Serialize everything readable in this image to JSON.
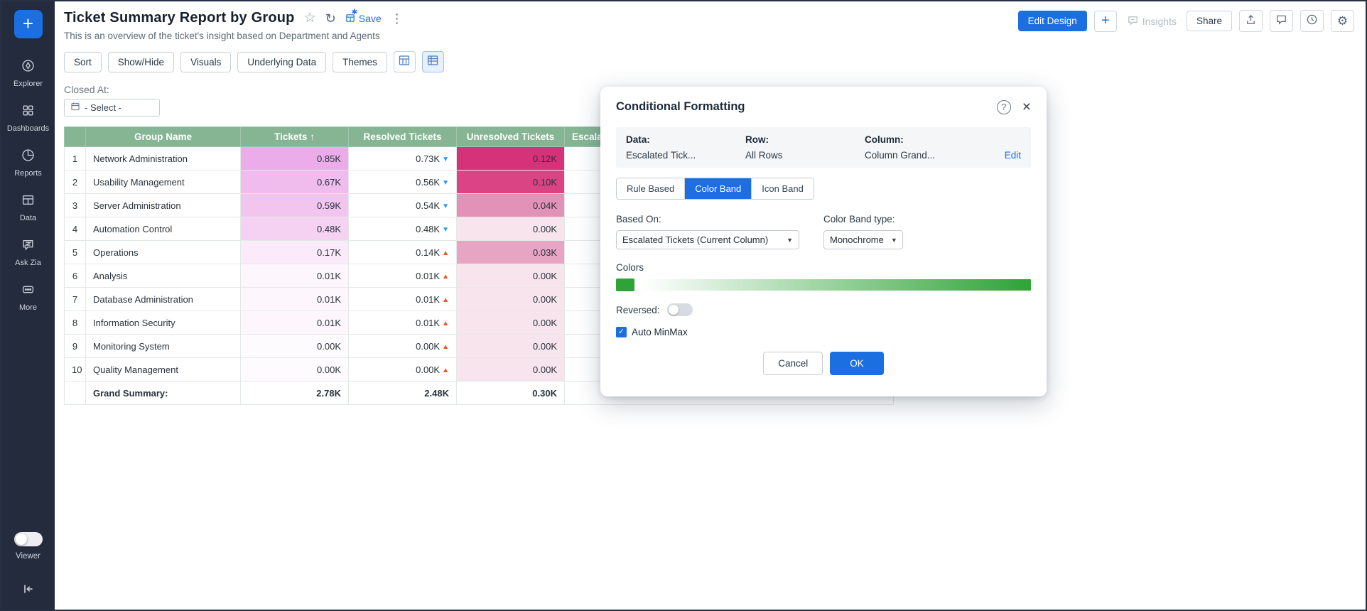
{
  "sidebar": {
    "add_button": "+",
    "items": [
      {
        "name": "explorer",
        "label": "Explorer"
      },
      {
        "name": "dashboards",
        "label": "Dashboards"
      },
      {
        "name": "reports",
        "label": "Reports"
      },
      {
        "name": "data",
        "label": "Data"
      },
      {
        "name": "ask-zia",
        "label": "Ask Zia"
      },
      {
        "name": "more",
        "label": "More"
      }
    ],
    "viewer_label": "Viewer"
  },
  "header": {
    "title": "Ticket Summary Report by Group",
    "subtitle": "This is an overview of the ticket's insight based on Department and Agents",
    "save_label": "Save",
    "edit_design_label": "Edit Design",
    "add_label": "+",
    "insights_label": "Insights",
    "share_label": "Share"
  },
  "toolbar": {
    "buttons": [
      "Sort",
      "Show/Hide",
      "Visuals",
      "Underlying Data",
      "Themes"
    ]
  },
  "filter": {
    "label": "Closed At:",
    "value": "- Select -"
  },
  "table": {
    "columns": [
      "Group Name",
      "Tickets",
      "Resolved Tickets",
      "Unresolved Tickets",
      "Escalated Tickets"
    ],
    "sort_column_index": 1,
    "sort_direction": "asc",
    "rows": [
      {
        "num": "1",
        "group": "Network Administration",
        "tickets": "0.85K",
        "tickets_bg": "#ecabe9",
        "resolved": "0.73K",
        "trend": "down",
        "unresolved": "0.12K",
        "unresolved_bg": "#d6327a"
      },
      {
        "num": "2",
        "group": "Usability Management",
        "tickets": "0.67K",
        "tickets_bg": "#f0bced",
        "resolved": "0.56K",
        "trend": "down",
        "unresolved": "0.10K",
        "unresolved_bg": "#da4384"
      },
      {
        "num": "3",
        "group": "Server Administration",
        "tickets": "0.59K",
        "tickets_bg": "#f2c5ef",
        "resolved": "0.54K",
        "trend": "down",
        "unresolved": "0.04K",
        "unresolved_bg": "#e292b6"
      },
      {
        "num": "4",
        "group": "Automation Control",
        "tickets": "0.48K",
        "tickets_bg": "#f5d2f2",
        "resolved": "0.48K",
        "trend": "down",
        "unresolved": "0.00K",
        "unresolved_bg": "#f8e4ed"
      },
      {
        "num": "5",
        "group": "Operations",
        "tickets": "0.17K",
        "tickets_bg": "#fbeafa",
        "resolved": "0.14K",
        "trend": "up",
        "unresolved": "0.03K",
        "unresolved_bg": "#e7a4c3"
      },
      {
        "num": "6",
        "group": "Analysis",
        "tickets": "0.01K",
        "tickets_bg": "#fdf7fd",
        "resolved": "0.01K",
        "trend": "up",
        "unresolved": "0.00K",
        "unresolved_bg": "#f8e4ed"
      },
      {
        "num": "7",
        "group": "Database Administration",
        "tickets": "0.01K",
        "tickets_bg": "#fdf7fd",
        "resolved": "0.01K",
        "trend": "up",
        "unresolved": "0.00K",
        "unresolved_bg": "#f8e4ed"
      },
      {
        "num": "8",
        "group": "Information Security",
        "tickets": "0.01K",
        "tickets_bg": "#fdf7fd",
        "resolved": "0.01K",
        "trend": "up",
        "unresolved": "0.00K",
        "unresolved_bg": "#f8e4ed"
      },
      {
        "num": "9",
        "group": "Monitoring System",
        "tickets": "0.00K",
        "tickets_bg": "#fefbfe",
        "resolved": "0.00K",
        "trend": "up",
        "unresolved": "0.00K",
        "unresolved_bg": "#f8e4ed"
      },
      {
        "num": "10",
        "group": "Quality Management",
        "tickets": "0.00K",
        "tickets_bg": "#fefbfe",
        "resolved": "0.00K",
        "trend": "up",
        "unresolved": "0.00K",
        "unresolved_bg": "#f8e4ed"
      }
    ],
    "grand_summary": {
      "label": "Grand Summary:",
      "tickets": "2.78K",
      "resolved": "2.48K",
      "unresolved": "0.30K"
    }
  },
  "dialog": {
    "title": "Conditional Formatting",
    "help_glyph": "?",
    "close_glyph": "×",
    "info": {
      "data_label": "Data:",
      "data_value": "Escalated Tick...",
      "row_label": "Row:",
      "row_value": "All Rows",
      "column_label": "Column:",
      "column_value": "Column Grand...",
      "edit_label": "Edit"
    },
    "tabs": [
      {
        "label": "Rule Based",
        "active": false
      },
      {
        "label": "Color Band",
        "active": true
      },
      {
        "label": "Icon Band",
        "active": false
      }
    ],
    "based_on": {
      "label": "Based On:",
      "value": "Escalated Tickets (Current Column)"
    },
    "band_type": {
      "label": "Color Band type:",
      "value": "Monochrome"
    },
    "colors_label": "Colors",
    "reversed_label": "Reversed:",
    "reversed_on": false,
    "auto_minmax_label": "Auto MinMax",
    "auto_minmax_checked": true,
    "cancel_label": "Cancel",
    "ok_label": "OK"
  },
  "colors": {
    "accent_blue": "#1c6fe0",
    "table_header_green": "#85b593",
    "band_green": "#2ea337",
    "trend_down_blue": "#2b9af3",
    "trend_up_red": "#f4511e",
    "summary_unresolved_red": "#b3262e"
  }
}
